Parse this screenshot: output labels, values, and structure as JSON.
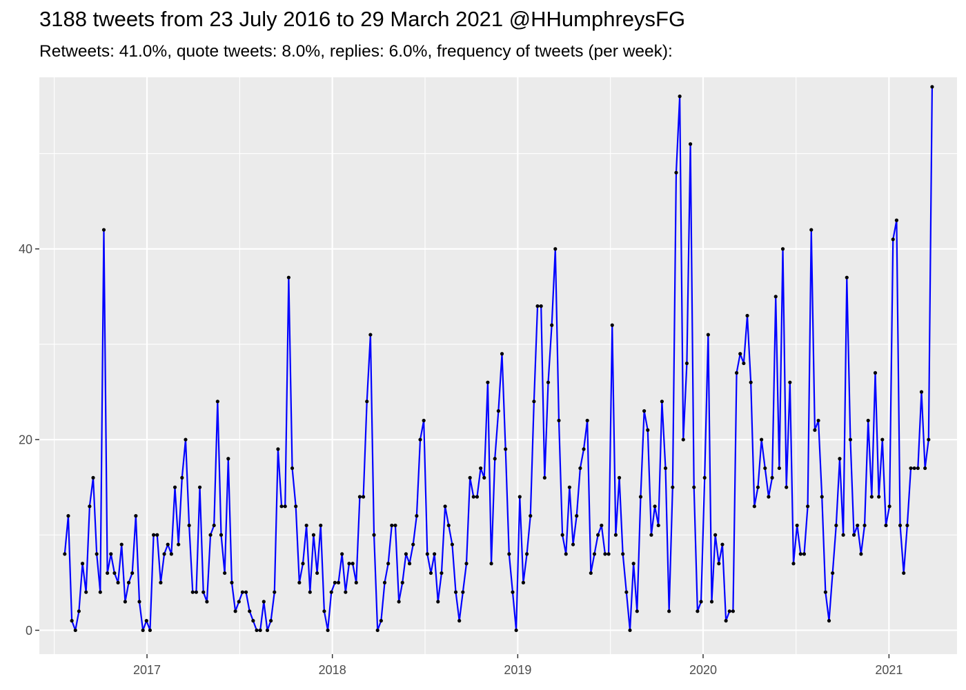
{
  "header": {
    "title": "3188 tweets from 23 July 2016 to 29 March 2021 @HHumphreysFG",
    "subtitle": "Retweets: 41.0%, quote tweets: 8.0%, replies: 6.0%, frequency of tweets (per week):"
  },
  "chart_data": {
    "type": "line",
    "title": "3188 tweets from 23 July 2016 to 29 March 2021 @HHumphreysFG",
    "subtitle": "Retweets: 41.0%, quote tweets: 8.0%, replies: 6.0%, frequency of tweets (per week):",
    "xlabel": "",
    "ylabel": "",
    "x_axis": "weekly dates",
    "x_start": "2016-07-23",
    "x_step_days": 7,
    "xlim": [
      "2016-06-03",
      "2021-05-15"
    ],
    "ylim": [
      -2.5,
      58
    ],
    "x_ticks": [
      "2017",
      "2018",
      "2019",
      "2020",
      "2021"
    ],
    "x_tick_dates": [
      "2017-01-01",
      "2018-01-01",
      "2019-01-01",
      "2020-01-01",
      "2021-01-01"
    ],
    "y_ticks": [
      0,
      20,
      40
    ],
    "grid": true,
    "line_color": "#0000ff",
    "point_color": "#000000",
    "panel_background": "#ebebeb",
    "grid_color": "#ffffff",
    "series": [
      {
        "values": [
          8,
          12,
          1,
          0,
          2,
          7,
          4,
          13,
          16,
          8,
          4,
          42,
          6,
          8,
          6,
          5,
          9,
          3,
          5,
          6,
          12,
          3,
          0,
          1,
          0,
          10,
          10,
          5,
          8,
          9,
          8,
          15,
          9,
          16,
          20,
          11,
          4,
          4,
          15,
          4,
          3,
          10,
          11,
          24,
          10,
          6,
          18,
          5,
          2,
          3,
          4,
          4,
          2,
          1,
          0,
          0,
          3,
          0,
          1,
          4,
          19,
          13,
          13,
          37,
          17,
          13,
          5,
          7,
          11,
          4,
          10,
          6,
          11,
          2,
          0,
          4,
          5,
          5,
          8,
          4,
          7,
          7,
          5,
          14,
          14,
          24,
          31,
          10,
          0,
          1,
          5,
          7,
          11,
          11,
          3,
          5,
          8,
          7,
          9,
          12,
          20,
          22,
          8,
          6,
          8,
          3,
          6,
          13,
          11,
          9,
          4,
          1,
          4,
          7,
          16,
          14,
          14,
          17,
          16,
          26,
          7,
          18,
          23,
          29,
          19,
          8,
          4,
          0,
          14,
          5,
          8,
          12,
          24,
          34,
          34,
          16,
          26,
          32,
          40,
          22,
          10,
          8,
          15,
          9,
          12,
          17,
          19,
          22,
          6,
          8,
          10,
          11,
          8,
          8,
          32,
          10,
          16,
          8,
          4,
          0,
          7,
          2,
          14,
          23,
          21,
          10,
          13,
          11,
          24,
          17,
          2,
          15,
          48,
          56,
          20,
          28,
          51,
          15,
          2,
          3,
          16,
          31,
          3,
          10,
          7,
          9,
          1,
          2,
          2,
          27,
          29,
          28,
          33,
          26,
          13,
          15,
          20,
          17,
          14,
          16,
          35,
          17,
          40,
          15,
          26,
          7,
          11,
          8,
          8,
          13,
          42,
          21,
          22,
          14,
          4,
          1,
          6,
          11,
          18,
          10,
          37,
          20,
          10,
          11,
          8,
          11,
          22,
          14,
          27,
          14,
          20,
          11,
          13,
          41,
          43,
          11,
          6,
          11,
          17,
          17,
          17,
          25,
          17,
          20,
          57
        ]
      }
    ]
  }
}
